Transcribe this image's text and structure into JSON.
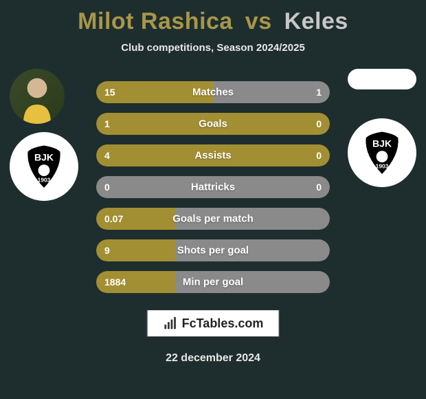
{
  "header": {
    "player1": "Milot Rashica",
    "vs": "vs",
    "player2": "Keles",
    "subtitle": "Club competitions, Season 2024/2025"
  },
  "bars": {
    "left_color": "#a38f33",
    "right_color": "#8a8a8a",
    "tie_color": "#8a8a8a",
    "font_color": "#ffffff",
    "rows": [
      {
        "label": "Matches",
        "left": "15",
        "right": "1",
        "left_pct": 50
      },
      {
        "label": "Goals",
        "left": "1",
        "right": "0",
        "left_pct": 100
      },
      {
        "label": "Assists",
        "left": "4",
        "right": "0",
        "left_pct": 100
      },
      {
        "label": "Hattricks",
        "left": "0",
        "right": "0",
        "left_pct": 0,
        "tie": true
      },
      {
        "label": "Goals per match",
        "left": "0.07",
        "right": "",
        "left_pct": 34
      },
      {
        "label": "Shots per goal",
        "left": "9",
        "right": "",
        "left_pct": 34
      },
      {
        "label": "Min per goal",
        "left": "1884",
        "right": "",
        "left_pct": 34
      }
    ]
  },
  "watermark": {
    "text": "FcTables.com"
  },
  "date": "22 december 2024",
  "clubs": {
    "left_name": "BJK 1903",
    "right_name": "BJK 1903"
  }
}
